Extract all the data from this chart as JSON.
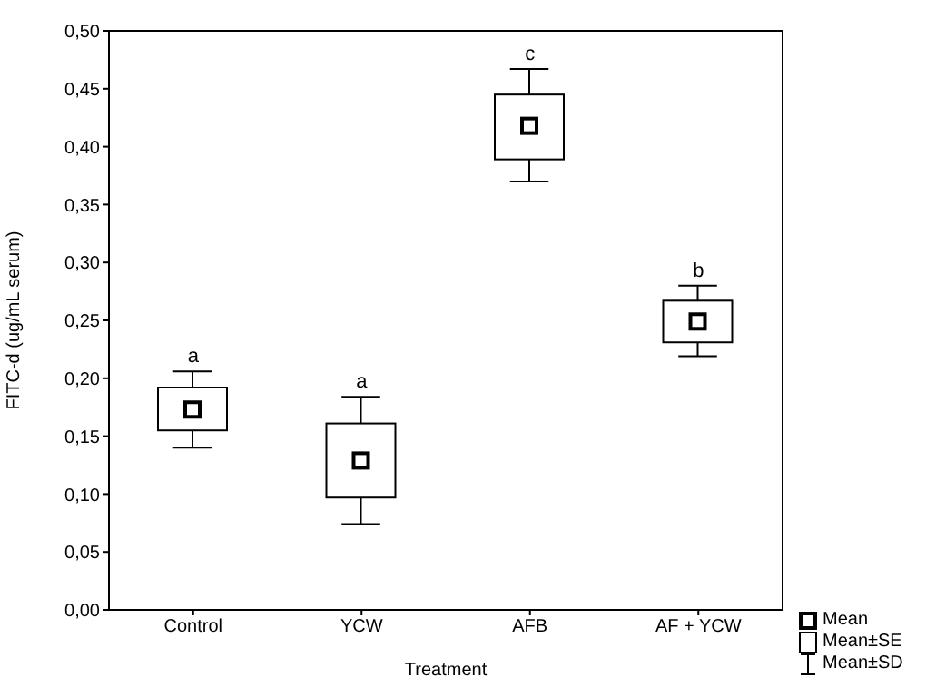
{
  "chart_data": {
    "type": "box",
    "xlabel": "Treatment",
    "ylabel": "FITC-d (ug/mL serum)",
    "categories": [
      "Control",
      "YCW",
      "AFB",
      "AF + YCW"
    ],
    "boxes": [
      {
        "low": 0.14,
        "q1": 0.155,
        "median": 0.173,
        "q3": 0.192,
        "high": 0.206
      },
      {
        "low": 0.074,
        "q1": 0.097,
        "median": 0.129,
        "q3": 0.161,
        "high": 0.184
      },
      {
        "low": 0.37,
        "q1": 0.389,
        "median": 0.418,
        "q3": 0.445,
        "high": 0.467
      },
      {
        "low": 0.219,
        "q1": 0.231,
        "median": 0.249,
        "q3": 0.267,
        "high": 0.28
      }
    ],
    "color": "#000000",
    "marker": "square",
    "ylim": [
      0,
      0.5
    ],
    "yticks": [
      {
        "value": 0,
        "label": "0,00"
      },
      {
        "value": 0.05,
        "label": "0,05"
      },
      {
        "value": 0.1,
        "label": "0,10"
      },
      {
        "value": 0.15,
        "label": "0,15"
      },
      {
        "value": 0.2,
        "label": "0,20"
      },
      {
        "value": 0.25,
        "label": "0,25"
      },
      {
        "value": 0.3,
        "label": "0,30"
      },
      {
        "value": 0.35,
        "label": "0,35"
      },
      {
        "value": 0.4,
        "label": "0,40"
      },
      {
        "value": 0.45,
        "label": "0,45"
      },
      {
        "value": 0.5,
        "label": "0,50"
      }
    ],
    "grid": false,
    "annotations": [
      {
        "text": "a",
        "x": "Control",
        "y": 0.206
      },
      {
        "text": "a",
        "x": "YCW",
        "y": 0.184
      },
      {
        "text": "c",
        "x": "AFB",
        "y": 0.467
      },
      {
        "text": "b",
        "x": "AF + YCW",
        "y": 0.28
      },
      "Mean",
      "Mean±SE",
      "Mean±SD"
    ]
  }
}
